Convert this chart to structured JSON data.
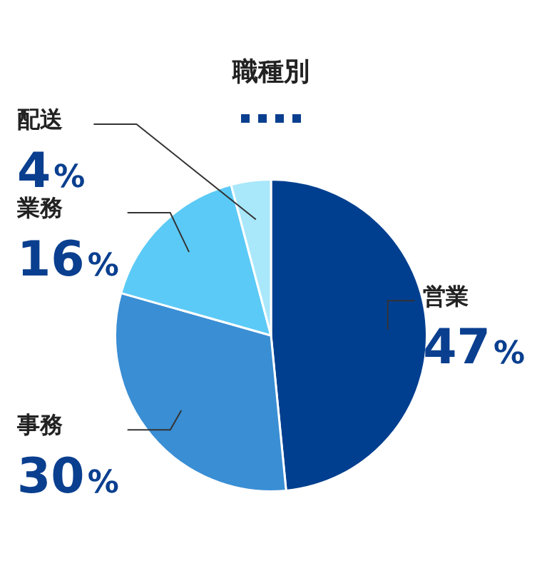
{
  "chart_data": {
    "type": "pie",
    "title": "職種別",
    "categories": [
      "営業",
      "事務",
      "業務",
      "配送"
    ],
    "values": [
      47,
      30,
      16,
      4
    ],
    "value_labels": [
      "47%",
      "30%",
      "16%",
      "4%"
    ],
    "colors": [
      "#003f8f",
      "#3a8ed4",
      "#5ccaf6",
      "#a9e7fb"
    ]
  }
}
